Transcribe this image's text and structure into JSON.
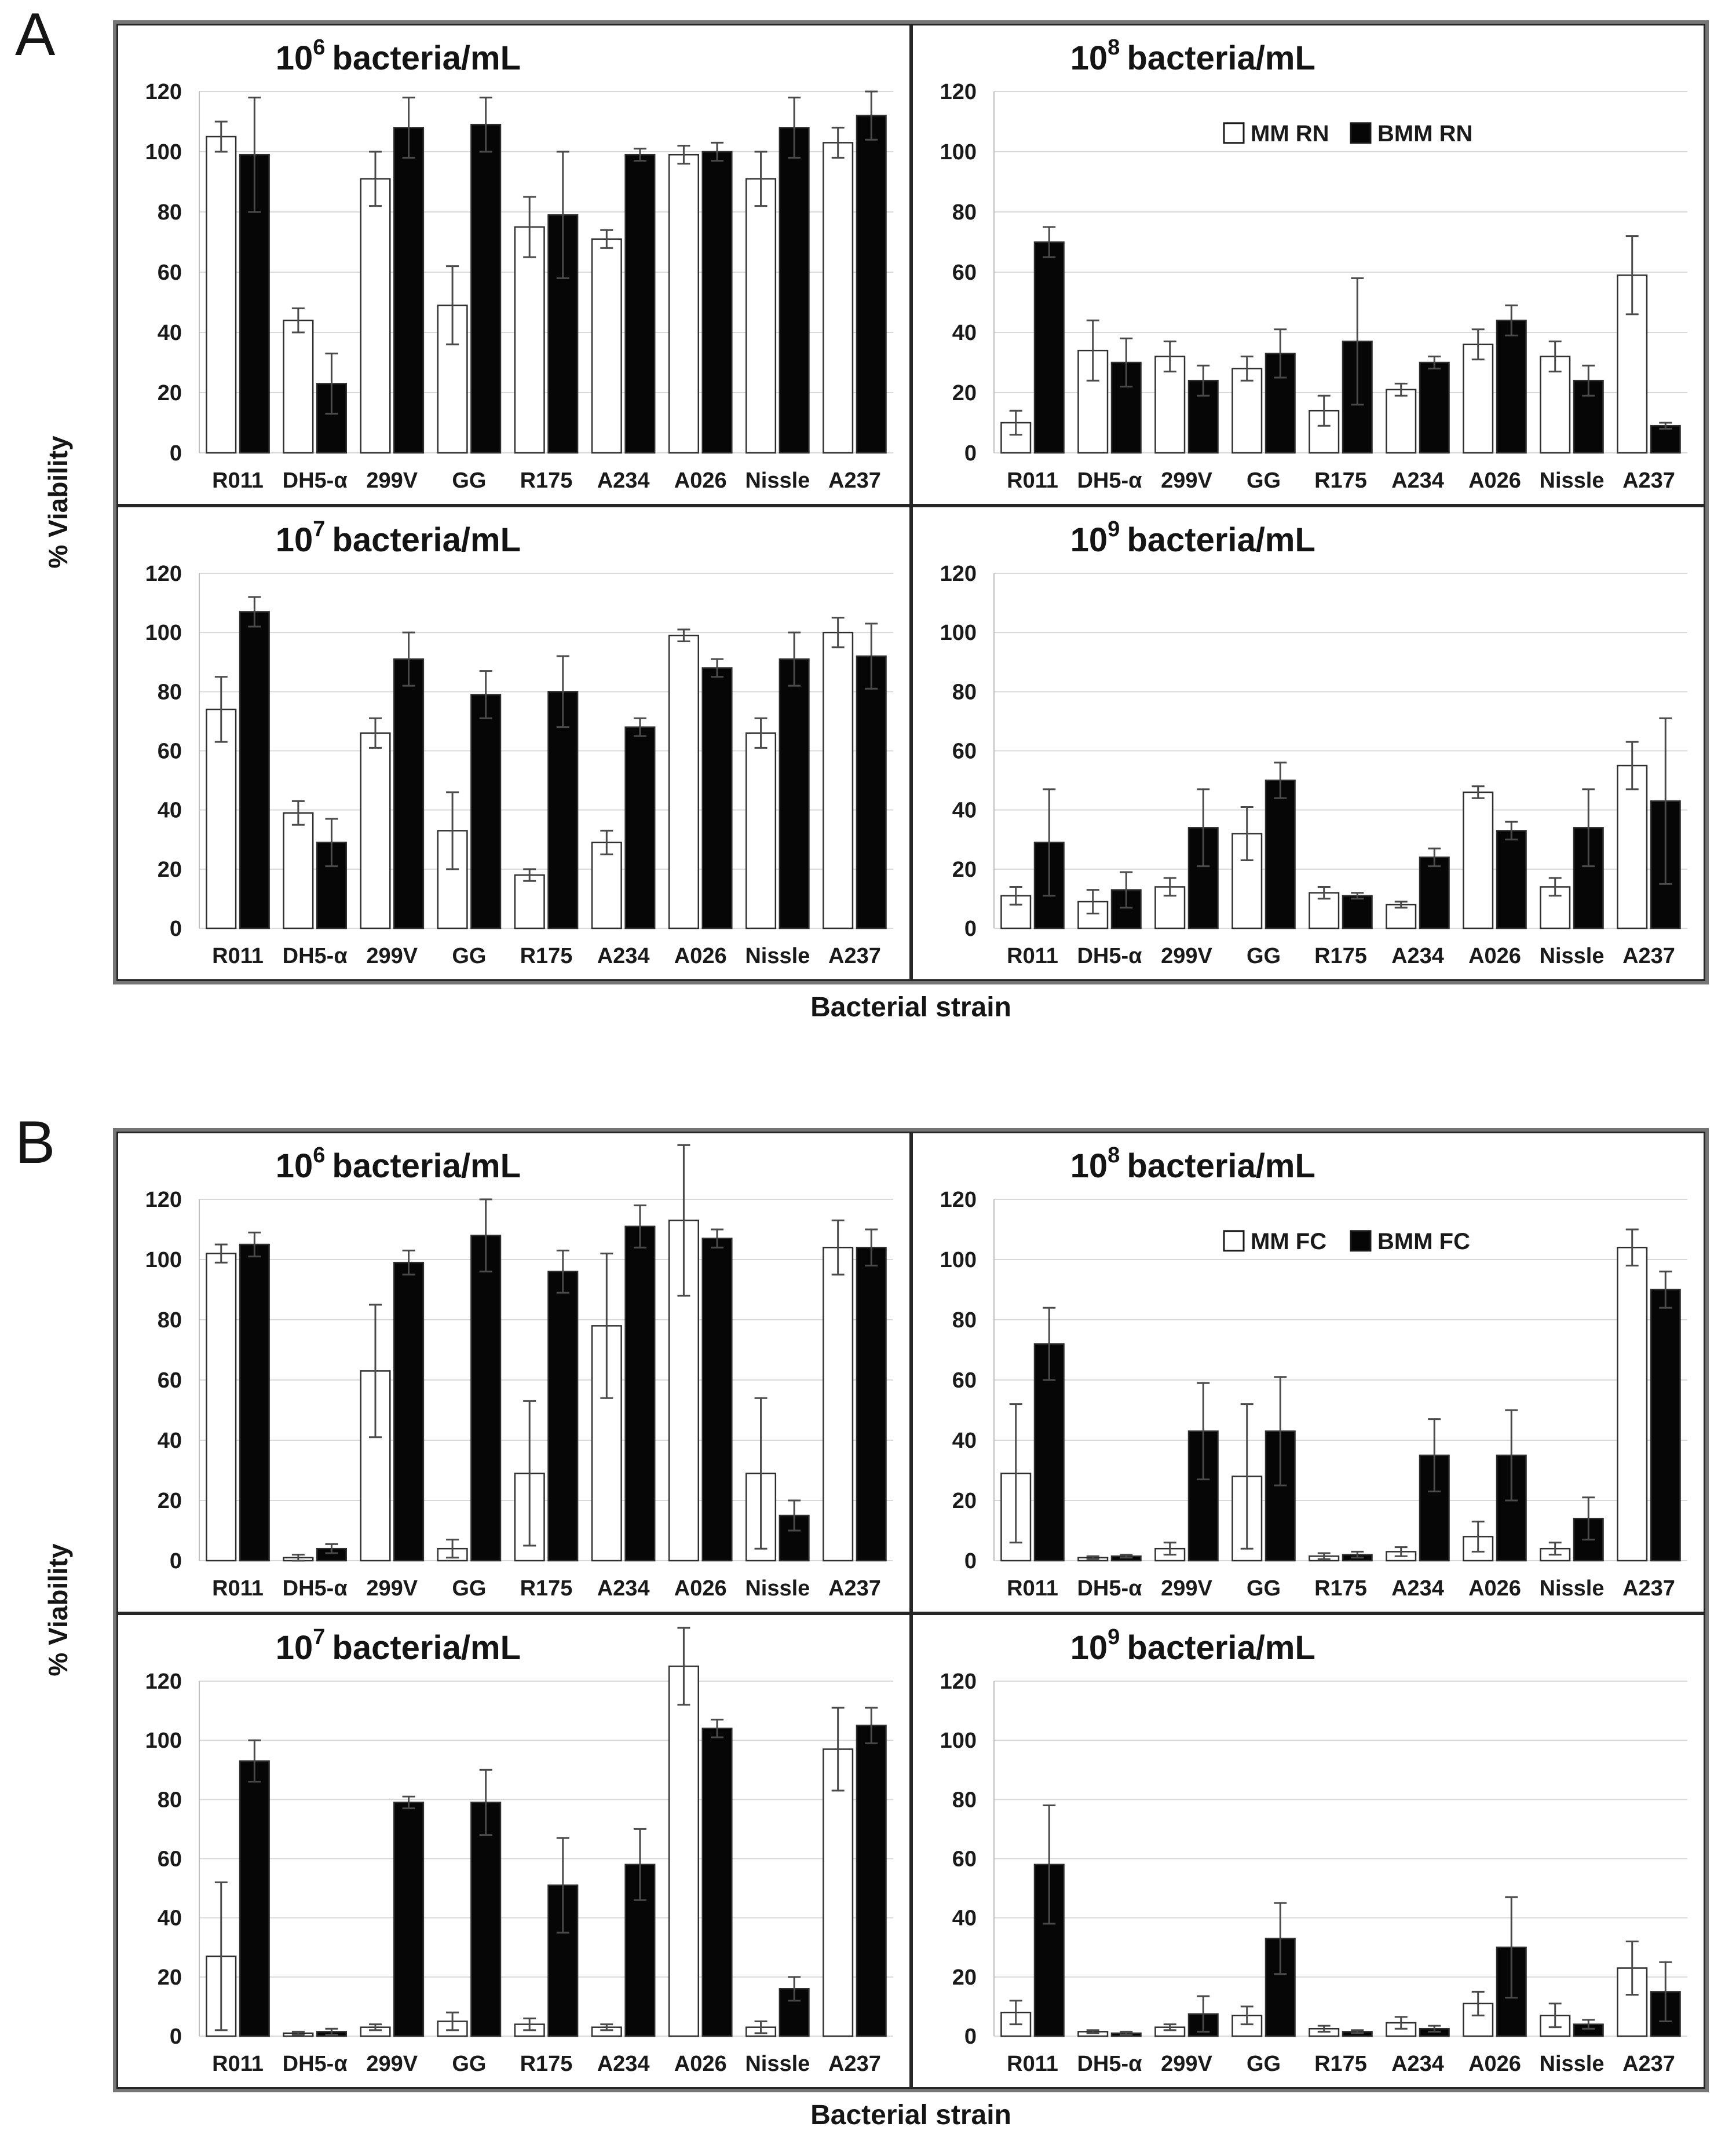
{
  "figure": {
    "y_axis_label": "% Viability",
    "x_axis_label": "Bacterial strain",
    "panels": [
      {
        "label": "A",
        "legend_series": [
          "MM RN",
          "BMM RN"
        ]
      },
      {
        "label": "B",
        "legend_series": [
          "MM FC",
          "BMM FC"
        ]
      }
    ],
    "colors": {
      "background": "#ffffff",
      "grid": "#d9d9d9",
      "spine": "#bfbfbf",
      "bar_outline": "#2f2f2f",
      "mm_fill": "#ffffff",
      "bmm_fill": "#060606",
      "error_bar": "#4a4a4a",
      "text": "#1a1a1a",
      "panel_border": "#757575",
      "subplot_border": "#262626"
    }
  },
  "chart_data": [
    {
      "id": "a6",
      "panel": "A",
      "position": "top-left",
      "type": "bar",
      "title": "10⁶ bacteria/mL",
      "title_prefix": "10",
      "exp": "6",
      "title_suffix": "bacteria/mL",
      "ylim": [
        0,
        120
      ],
      "yticks": [
        0,
        20,
        40,
        60,
        80,
        100,
        120
      ],
      "legend_visible": false,
      "categories": [
        "R011",
        "DH5-α",
        "299V",
        "GG",
        "R175",
        "A234",
        "A026",
        "Nissle",
        "A237"
      ],
      "series": [
        {
          "name": "MM RN",
          "fill": "white",
          "values": [
            105,
            44,
            91,
            49,
            75,
            71,
            99,
            91,
            103
          ],
          "errors": [
            5,
            4,
            9,
            13,
            10,
            3,
            3,
            9,
            5
          ]
        },
        {
          "name": "BMM RN",
          "fill": "black",
          "values": [
            99,
            23,
            108,
            109,
            79,
            99,
            100,
            108,
            112
          ],
          "errors": [
            19,
            10,
            10,
            9,
            21,
            2,
            3,
            10,
            8
          ]
        }
      ]
    },
    {
      "id": "a8",
      "panel": "A",
      "position": "top-right",
      "type": "bar",
      "title": "10⁸ bacteria/mL",
      "title_prefix": "10",
      "exp": "8",
      "title_suffix": "bacteria/mL",
      "ylim": [
        0,
        120
      ],
      "yticks": [
        0,
        20,
        40,
        60,
        80,
        100,
        120
      ],
      "legend_visible": true,
      "categories": [
        "R011",
        "DH5-α",
        "299V",
        "GG",
        "R175",
        "A234",
        "A026",
        "Nissle",
        "A237"
      ],
      "series": [
        {
          "name": "MM RN",
          "fill": "white",
          "values": [
            10,
            34,
            32,
            28,
            14,
            21,
            36,
            32,
            59
          ],
          "errors": [
            4,
            10,
            5,
            4,
            5,
            2,
            5,
            5,
            13
          ]
        },
        {
          "name": "BMM RN",
          "fill": "black",
          "values": [
            70,
            30,
            24,
            33,
            37,
            30,
            44,
            24,
            9
          ],
          "errors": [
            5,
            8,
            5,
            8,
            21,
            2,
            5,
            5,
            1
          ]
        }
      ]
    },
    {
      "id": "a7",
      "panel": "A",
      "position": "bottom-left",
      "type": "bar",
      "title": "10⁷ bacteria/mL",
      "title_prefix": "10",
      "exp": "7",
      "title_suffix": "bacteria/mL",
      "ylim": [
        0,
        120
      ],
      "yticks": [
        0,
        20,
        40,
        60,
        80,
        100,
        120
      ],
      "legend_visible": false,
      "categories": [
        "R011",
        "DH5-α",
        "299V",
        "GG",
        "R175",
        "A234",
        "A026",
        "Nissle",
        "A237"
      ],
      "series": [
        {
          "name": "MM RN",
          "fill": "white",
          "values": [
            74,
            39,
            66,
            33,
            18,
            29,
            99,
            66,
            100
          ],
          "errors": [
            11,
            4,
            5,
            13,
            2,
            4,
            2,
            5,
            5
          ]
        },
        {
          "name": "BMM RN",
          "fill": "black",
          "values": [
            107,
            29,
            91,
            79,
            80,
            68,
            88,
            91,
            92
          ],
          "errors": [
            5,
            8,
            9,
            8,
            12,
            3,
            3,
            9,
            11
          ]
        }
      ]
    },
    {
      "id": "a9",
      "panel": "A",
      "position": "bottom-right",
      "type": "bar",
      "title": "10⁹ bacteria/mL",
      "title_prefix": "10",
      "exp": "9",
      "title_suffix": "bacteria/mL",
      "ylim": [
        0,
        120
      ],
      "yticks": [
        0,
        20,
        40,
        60,
        80,
        100,
        120
      ],
      "legend_visible": false,
      "categories": [
        "R011",
        "DH5-α",
        "299V",
        "GG",
        "R175",
        "A234",
        "A026",
        "Nissle",
        "A237"
      ],
      "series": [
        {
          "name": "MM RN",
          "fill": "white",
          "values": [
            11,
            9,
            14,
            32,
            12,
            8,
            46,
            14,
            55
          ],
          "errors": [
            3,
            4,
            3,
            9,
            2,
            1,
            2,
            3,
            8
          ]
        },
        {
          "name": "BMM RN",
          "fill": "black",
          "values": [
            29,
            13,
            34,
            50,
            11,
            24,
            33,
            34,
            43
          ],
          "errors": [
            18,
            6,
            13,
            6,
            1,
            3,
            3,
            13,
            28
          ]
        }
      ]
    },
    {
      "id": "b6",
      "panel": "B",
      "position": "top-left",
      "type": "bar",
      "title": "10⁶ bacteria/mL",
      "title_prefix": "10",
      "exp": "6",
      "title_suffix": "bacteria/mL",
      "ylim": [
        0,
        120
      ],
      "yticks": [
        0,
        20,
        40,
        60,
        80,
        100,
        120
      ],
      "legend_visible": false,
      "categories": [
        "R011",
        "DH5-α",
        "299V",
        "GG",
        "R175",
        "A234",
        "A026",
        "Nissle",
        "A237"
      ],
      "series": [
        {
          "name": "MM FC",
          "fill": "white",
          "values": [
            102,
            1,
            63,
            4,
            29,
            78,
            113,
            29,
            104
          ],
          "errors": [
            3,
            1,
            22,
            3,
            24,
            24,
            25,
            25,
            9
          ]
        },
        {
          "name": "BMM FC",
          "fill": "black",
          "values": [
            105,
            4,
            99,
            108,
            96,
            111,
            107,
            15,
            104
          ],
          "errors": [
            4,
            1.5,
            4,
            12,
            7,
            7,
            3,
            5,
            6
          ]
        }
      ]
    },
    {
      "id": "b8",
      "panel": "B",
      "position": "top-right",
      "type": "bar",
      "title": "10⁸ bacteria/mL",
      "title_prefix": "10",
      "exp": "8",
      "title_suffix": "bacteria/mL",
      "ylim": [
        0,
        120
      ],
      "yticks": [
        0,
        20,
        40,
        60,
        80,
        100,
        120
      ],
      "legend_visible": true,
      "categories": [
        "R011",
        "DH5-α",
        "299V",
        "GG",
        "R175",
        "A234",
        "A026",
        "Nissle",
        "A237"
      ],
      "series": [
        {
          "name": "MM FC",
          "fill": "white",
          "values": [
            29,
            1,
            4,
            28,
            1.5,
            3,
            8,
            4,
            104
          ],
          "errors": [
            23,
            0.5,
            2,
            24,
            1,
            1.5,
            5,
            2,
            6
          ]
        },
        {
          "name": "BMM FC",
          "fill": "black",
          "values": [
            72,
            1.5,
            43,
            43,
            2,
            35,
            35,
            14,
            90
          ],
          "errors": [
            12,
            0.5,
            16,
            18,
            1,
            12,
            15,
            7,
            6
          ]
        }
      ]
    },
    {
      "id": "b7",
      "panel": "B",
      "position": "bottom-left",
      "type": "bar",
      "title": "10⁷ bacteria/mL",
      "title_prefix": "10",
      "exp": "7",
      "title_suffix": "bacteria/mL",
      "ylim": [
        0,
        120
      ],
      "yticks": [
        0,
        20,
        40,
        60,
        80,
        100,
        120
      ],
      "legend_visible": false,
      "categories": [
        "R011",
        "DH5-α",
        "299V",
        "GG",
        "R175",
        "A234",
        "A026",
        "Nissle",
        "A237"
      ],
      "series": [
        {
          "name": "MM FC",
          "fill": "white",
          "values": [
            27,
            1,
            3,
            5,
            4,
            3,
            125,
            3,
            97
          ],
          "errors": [
            25,
            0.5,
            1,
            3,
            2,
            1,
            13,
            2,
            14
          ]
        },
        {
          "name": "BMM FC",
          "fill": "black",
          "values": [
            93,
            1.5,
            79,
            79,
            51,
            58,
            104,
            16,
            105
          ],
          "errors": [
            7,
            1,
            2,
            11,
            16,
            12,
            3,
            4,
            6
          ]
        }
      ]
    },
    {
      "id": "b9",
      "panel": "B",
      "position": "bottom-right",
      "type": "bar",
      "title": "10⁹ bacteria/mL",
      "title_prefix": "10",
      "exp": "9",
      "title_suffix": "bacteria/mL",
      "ylim": [
        0,
        120
      ],
      "yticks": [
        0,
        20,
        40,
        60,
        80,
        100,
        120
      ],
      "legend_visible": false,
      "categories": [
        "R011",
        "DH5-α",
        "299V",
        "GG",
        "R175",
        "A234",
        "A026",
        "Nissle",
        "A237"
      ],
      "series": [
        {
          "name": "MM FC",
          "fill": "white",
          "values": [
            8,
            1.5,
            3,
            7,
            2.5,
            4.5,
            11,
            7,
            23
          ],
          "errors": [
            4,
            0.5,
            1,
            3,
            1,
            2,
            4,
            4,
            9
          ]
        },
        {
          "name": "BMM FC",
          "fill": "black",
          "values": [
            58,
            1,
            7.5,
            33,
            1.5,
            2.5,
            30,
            4,
            15
          ],
          "errors": [
            20,
            0.5,
            6,
            12,
            0.5,
            1,
            17,
            1.5,
            10
          ]
        }
      ]
    }
  ]
}
